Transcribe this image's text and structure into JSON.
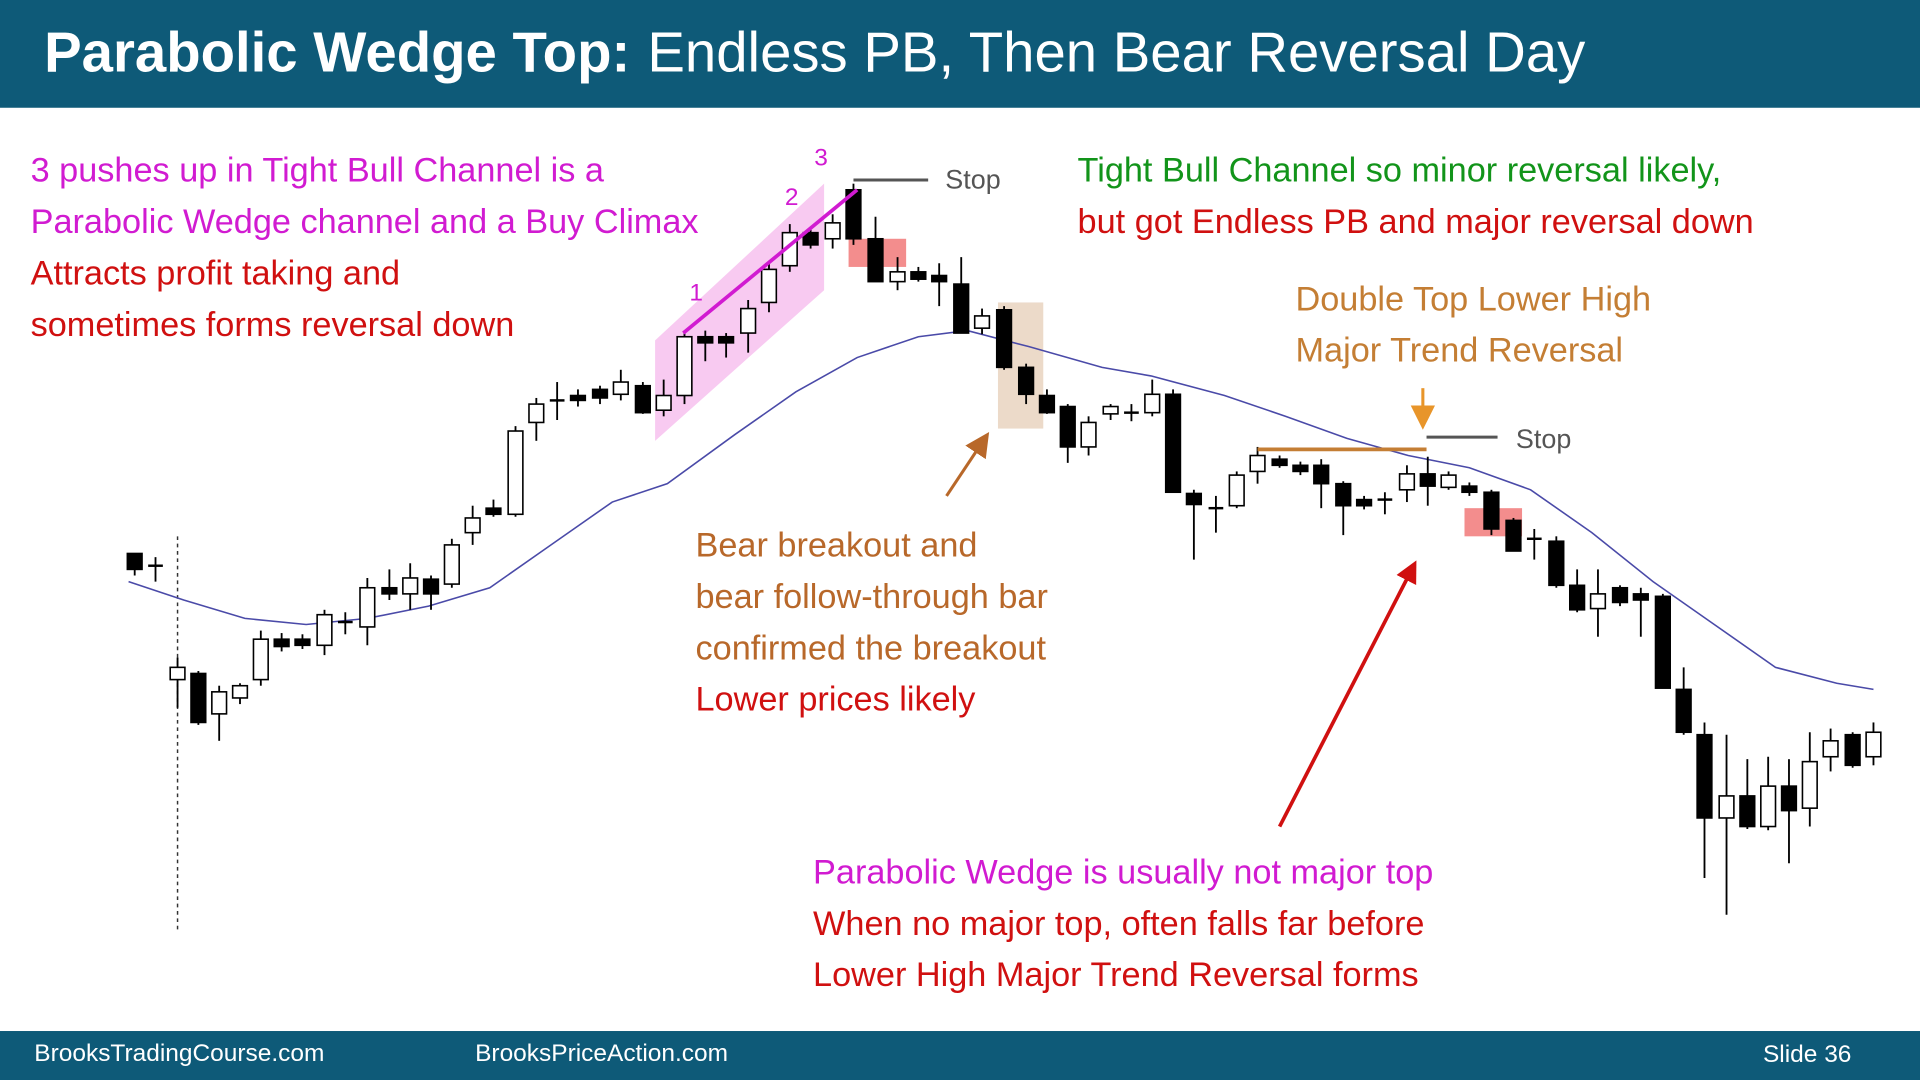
{
  "header": {
    "title_bold": "Parabolic Wedge Top:",
    "title_rest": "Endless PB, Then Bear Reversal Day"
  },
  "annotations": {
    "wedge": [
      "3 pushes up in Tight Bull Channel is a",
      "Parabolic Wedge channel and a Buy Climax",
      "Attracts profit taking and",
      "sometimes forms reversal down"
    ],
    "channel": [
      "Tight Bull Channel so minor reversal likely,",
      "but got Endless PB and major reversal down"
    ],
    "double_top": [
      "Double Top Lower High",
      "Major Trend Reversal"
    ],
    "breakout": [
      "Bear breakout and",
      "bear follow-through bar",
      "confirmed the breakout",
      "Lower prices likely"
    ],
    "major_top": [
      "Parabolic Wedge is usually not major top",
      "When no major top, often falls far before",
      "Lower High Major Trend Reversal forms"
    ],
    "push_labels": [
      "1",
      "2",
      "3"
    ],
    "stops": [
      "Stop",
      "Stop"
    ]
  },
  "footer": {
    "left": "BrooksTradingCourse.com",
    "center": "BrooksPriceAction.com",
    "slide": "Slide  36"
  }
}
